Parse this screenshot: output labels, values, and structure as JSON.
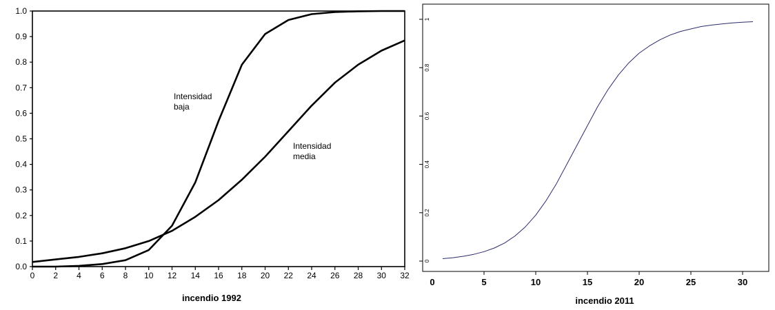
{
  "chart_data": [
    {
      "type": "line",
      "title": "",
      "xlabel": "incendio 1992",
      "ylabel": "",
      "xlim": [
        0,
        32
      ],
      "ylim": [
        0,
        1
      ],
      "xticks": [
        "0",
        "2",
        "4",
        "6",
        "8",
        "10",
        "12",
        "14",
        "16",
        "18",
        "20",
        "22",
        "24",
        "26",
        "28",
        "30",
        "32"
      ],
      "yticks": [
        "0.0",
        "0.1",
        "0.2",
        "0.3",
        "0.4",
        "0.5",
        "0.6",
        "0.7",
        "0.8",
        "0.9",
        "1.0"
      ],
      "grid": false,
      "line_color": "#000000",
      "series": [
        {
          "name": "Intensidad baja",
          "x": [
            0,
            2,
            4,
            6,
            8,
            10,
            12,
            14,
            16,
            18,
            20,
            22,
            24,
            26,
            28,
            30,
            32
          ],
          "y": [
            0.0,
            0.0,
            0.003,
            0.01,
            0.025,
            0.065,
            0.16,
            0.33,
            0.57,
            0.79,
            0.91,
            0.965,
            0.988,
            0.996,
            0.999,
            1.0,
            1.0
          ],
          "label_lines": [
            "Intensidad",
            "baja"
          ]
        },
        {
          "name": "Intensidad media",
          "x": [
            0,
            2,
            4,
            6,
            8,
            10,
            12,
            14,
            16,
            18,
            20,
            22,
            24,
            26,
            28,
            30,
            32
          ],
          "y": [
            0.018,
            0.028,
            0.038,
            0.052,
            0.072,
            0.1,
            0.14,
            0.195,
            0.26,
            0.34,
            0.43,
            0.53,
            0.63,
            0.72,
            0.79,
            0.845,
            0.885
          ],
          "label_lines": [
            "Intensidad",
            "media"
          ]
        }
      ]
    },
    {
      "type": "line",
      "title": "",
      "xlabel": "incendio 2011",
      "ylabel": "",
      "xlim": [
        0,
        32
      ],
      "ylim": [
        0,
        1
      ],
      "xticks": [
        "0",
        "5",
        "10",
        "15",
        "20",
        "25",
        "30"
      ],
      "yticks": [
        "0",
        "0.2",
        "0.4",
        "0.6",
        "0.8",
        "1"
      ],
      "grid": false,
      "line_color": "#2a2a6e",
      "series": [
        {
          "x": [
            1,
            2,
            3,
            4,
            5,
            6,
            7,
            8,
            9,
            10,
            11,
            12,
            13,
            14,
            15,
            16,
            17,
            18,
            19,
            20,
            21,
            22,
            23,
            24,
            25,
            26,
            27,
            28,
            29,
            30,
            31
          ],
          "y": [
            0.01,
            0.014,
            0.02,
            0.028,
            0.039,
            0.054,
            0.075,
            0.104,
            0.142,
            0.19,
            0.25,
            0.32,
            0.4,
            0.48,
            0.56,
            0.64,
            0.71,
            0.77,
            0.82,
            0.86,
            0.89,
            0.915,
            0.935,
            0.95,
            0.96,
            0.97,
            0.976,
            0.981,
            0.985,
            0.988,
            0.99
          ]
        }
      ]
    }
  ]
}
